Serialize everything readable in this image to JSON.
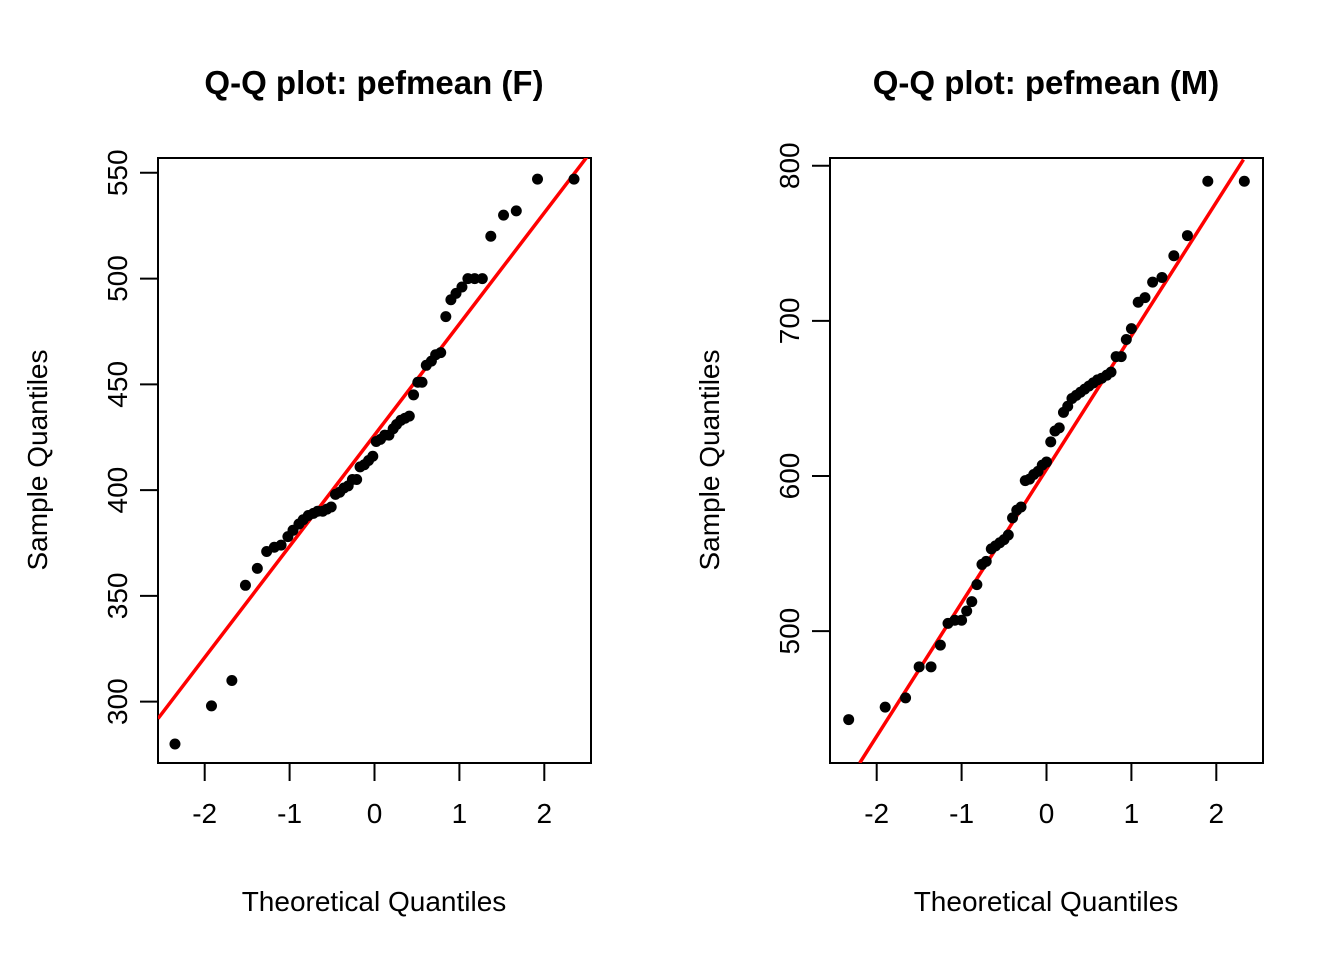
{
  "chart_data": [
    {
      "type": "scatter",
      "title": "Q-Q plot: pefmean (F)",
      "xlabel": "Theoretical Quantiles",
      "ylabel": "Sample Quantiles",
      "xlim": [
        -2.55,
        2.55
      ],
      "ylim": [
        271,
        557
      ],
      "xticks": [
        -2,
        -1,
        0,
        1,
        2
      ],
      "yticks": [
        300,
        350,
        400,
        450,
        500,
        550
      ],
      "point_color": "#000000",
      "line_color": "#ff0000",
      "reference_line": {
        "x": [
          -2.55,
          2.55
        ],
        "y": [
          292,
          560
        ]
      },
      "points": {
        "x": [
          -2.35,
          -1.92,
          -1.68,
          -1.52,
          -1.38,
          -1.27,
          -1.18,
          -1.1,
          -1.02,
          -0.96,
          -0.89,
          -0.84,
          -0.78,
          -0.72,
          -0.67,
          -0.61,
          -0.56,
          -0.51,
          -0.46,
          -0.41,
          -0.36,
          -0.31,
          -0.26,
          -0.21,
          -0.17,
          -0.12,
          -0.07,
          -0.02,
          0.02,
          0.07,
          0.12,
          0.17,
          0.22,
          0.26,
          0.31,
          0.36,
          0.41,
          0.46,
          0.51,
          0.56,
          0.61,
          0.67,
          0.72,
          0.78,
          0.84,
          0.9,
          0.96,
          1.03,
          1.1,
          1.18,
          1.27,
          1.37,
          1.52,
          1.67,
          1.92,
          2.35
        ],
        "y": [
          280,
          298,
          310,
          355,
          363,
          371,
          373,
          374,
          378,
          381,
          384,
          386,
          388,
          389,
          390,
          390,
          391,
          392,
          398,
          399,
          401,
          402,
          405,
          405,
          411,
          412,
          414,
          416,
          423,
          424,
          426,
          426,
          429,
          431,
          433,
          434,
          435,
          445,
          451,
          451,
          459,
          461,
          464,
          465,
          482,
          490,
          493,
          496,
          500,
          500,
          500,
          520,
          530,
          532,
          547,
          547
        ]
      }
    },
    {
      "type": "scatter",
      "title": "Q-Q plot: pefmean (M)",
      "xlabel": "Theoretical Quantiles",
      "ylabel": "Sample Quantiles",
      "xlim": [
        -2.55,
        2.55
      ],
      "ylim": [
        415,
        805
      ],
      "xticks": [
        -2,
        -1,
        0,
        1,
        2
      ],
      "yticks": [
        500,
        600,
        700,
        800
      ],
      "point_color": "#000000",
      "line_color": "#ff0000",
      "reference_line": {
        "x": [
          -2.2,
          2.32
        ],
        "y": [
          415,
          804
        ]
      },
      "points": {
        "x": [
          -2.33,
          -1.9,
          -1.66,
          -1.5,
          -1.36,
          -1.25,
          -1.16,
          -1.08,
          -1.0,
          -0.94,
          -0.88,
          -0.82,
          -0.76,
          -0.71,
          -0.65,
          -0.6,
          -0.55,
          -0.5,
          -0.45,
          -0.4,
          -0.35,
          -0.3,
          -0.25,
          -0.2,
          -0.15,
          -0.1,
          -0.05,
          0.0,
          0.05,
          0.1,
          0.15,
          0.2,
          0.25,
          0.3,
          0.35,
          0.4,
          0.45,
          0.5,
          0.55,
          0.6,
          0.65,
          0.71,
          0.76,
          0.82,
          0.88,
          0.94,
          1.0,
          1.08,
          1.16,
          1.25,
          1.36,
          1.5,
          1.66,
          1.9,
          2.33
        ],
        "y": [
          443,
          451,
          457,
          477,
          477,
          491,
          505,
          507,
          507,
          513,
          519,
          530,
          543,
          545,
          553,
          555,
          557,
          559,
          562,
          573,
          578,
          580,
          597,
          598,
          601,
          603,
          607,
          609,
          622,
          629,
          631,
          641,
          645,
          650,
          652,
          654,
          656,
          658,
          660,
          662,
          663,
          665,
          667,
          677,
          677,
          688,
          695,
          712,
          715,
          725,
          728,
          742,
          755,
          790,
          790
        ]
      }
    }
  ]
}
